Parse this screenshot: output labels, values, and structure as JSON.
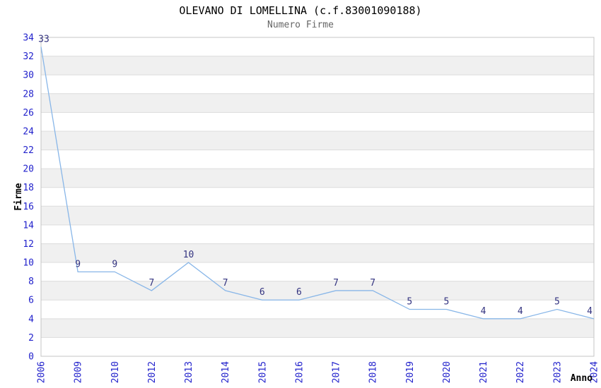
{
  "chart_data": {
    "type": "line",
    "title": "OLEVANO DI LOMELLINA (c.f.83001090188)",
    "subtitle": "Numero Firme",
    "xlabel": "Anno",
    "ylabel": "Firme",
    "categories": [
      "2006",
      "2009",
      "2010",
      "2012",
      "2013",
      "2014",
      "2015",
      "2016",
      "2017",
      "2018",
      "2019",
      "2020",
      "2021",
      "2022",
      "2023",
      "2024"
    ],
    "values": [
      33,
      9,
      9,
      7,
      10,
      7,
      6,
      6,
      7,
      7,
      5,
      5,
      4,
      4,
      5,
      4
    ],
    "ylim": [
      0,
      34
    ],
    "ytick_step": 2,
    "grid": true,
    "legend": "none",
    "colors": {
      "line": "#88b6e8",
      "tick_label": "#2222cc",
      "point_label": "#333380",
      "band": "#f0f0f0",
      "gridline": "#dcdcdc",
      "border": "#c4c4c4",
      "subtitle": "#666666",
      "axis_title": "#000000"
    }
  }
}
